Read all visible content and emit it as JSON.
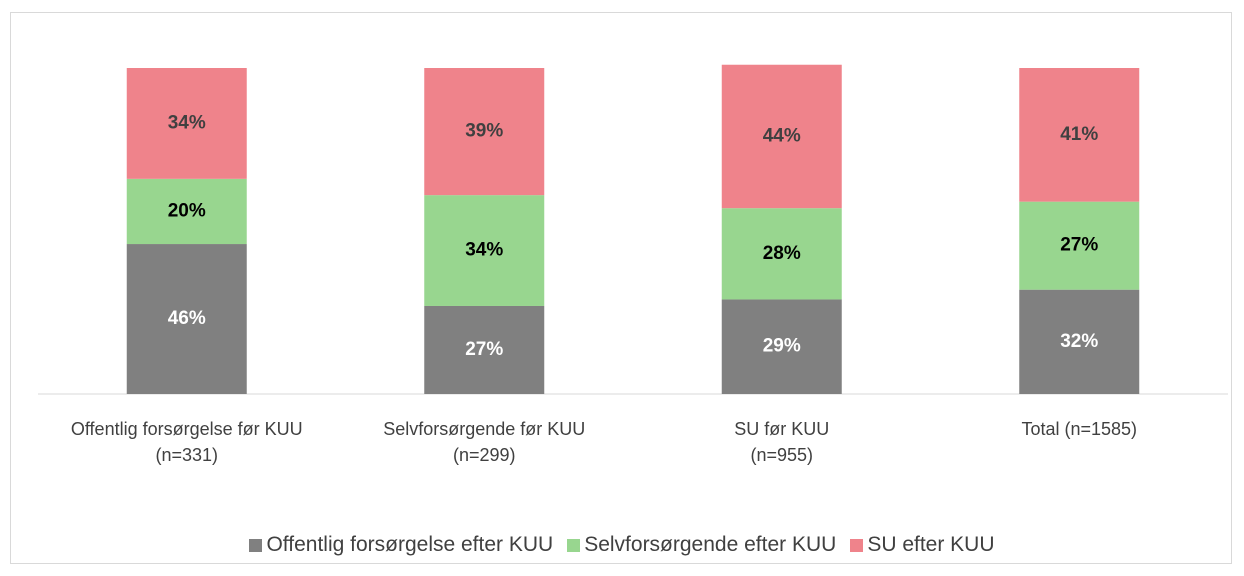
{
  "chart_data": {
    "type": "stacked_bar",
    "categories": [
      "Offentlig forsørgelse før KUU\n(n=331)",
      "Selvforsørgende før KUU\n(n=299)",
      "SU før KUU\n(n=955)",
      "Total (n=1585)"
    ],
    "series": [
      {
        "name": "Offentlig forsørgelse efter KUU",
        "color": "#808080",
        "values": [
          46,
          27,
          29,
          32
        ],
        "value_labels": [
          "46%",
          "27%",
          "29%",
          "32%"
        ]
      },
      {
        "name": "Selvforsørgende efter KUU",
        "color": "#98d68f",
        "values": [
          20,
          34,
          28,
          27
        ],
        "value_labels": [
          "20%",
          "34%",
          "28%",
          "27%"
        ]
      },
      {
        "name": "SU efter KUU",
        "color": "#ef838b",
        "values": [
          34,
          39,
          44,
          41
        ],
        "value_labels": [
          "34%",
          "39%",
          "44%",
          "41%"
        ]
      }
    ],
    "ylim": [
      0,
      100
    ],
    "legend": "bottom"
  }
}
